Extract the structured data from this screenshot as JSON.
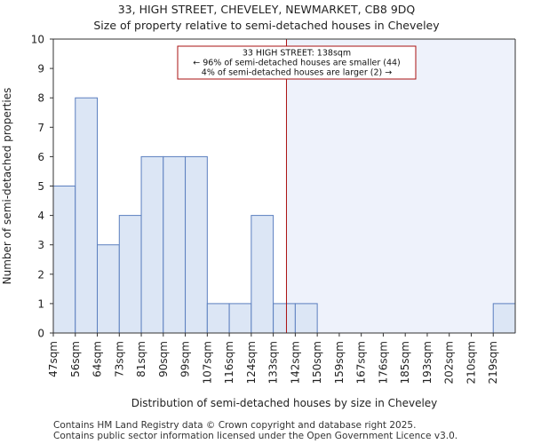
{
  "header": {
    "title_line1": "33, HIGH STREET, CHEVELEY, NEWMARKET, CB8 9DQ",
    "title_line2": "Size of property relative to semi-detached houses in Cheveley"
  },
  "footer": {
    "line1": "Contains HM Land Registry data © Crown copyright and database right 2025.",
    "line2": "Contains public sector information licensed under the Open Government Licence v3.0."
  },
  "chart_data": {
    "type": "bar",
    "title": "33, HIGH STREET, CHEVELEY, NEWMARKET, CB8 9DQ",
    "subtitle": "Size of property relative to semi-detached houses in Cheveley",
    "xlabel": "Distribution of semi-detached houses by size in Cheveley",
    "ylabel": "Number of semi-detached properties",
    "categories": [
      "47sqm",
      "56sqm",
      "64sqm",
      "73sqm",
      "81sqm",
      "90sqm",
      "99sqm",
      "107sqm",
      "116sqm",
      "124sqm",
      "133sqm",
      "142sqm",
      "150sqm",
      "159sqm",
      "167sqm",
      "176sqm",
      "185sqm",
      "193sqm",
      "202sqm",
      "210sqm",
      "219sqm"
    ],
    "values": [
      5,
      8,
      3,
      4,
      6,
      6,
      6,
      1,
      1,
      4,
      1,
      1,
      0,
      0,
      0,
      0,
      0,
      0,
      0,
      0,
      1
    ],
    "ylim": [
      0,
      10
    ],
    "yticks": [
      0,
      1,
      2,
      3,
      4,
      5,
      6,
      7,
      8,
      9,
      10
    ],
    "marker": {
      "value_sqm": 138,
      "bin_position": 10.6
    },
    "annotation": {
      "line1": "33 HIGH STREET: 138sqm",
      "line2": "← 96% of semi-detached houses are smaller (44)",
      "line3": "4% of semi-detached houses are larger (2) →"
    },
    "colors": {
      "bar_fill": "#dce6f5",
      "bar_stroke": "#5b7fbf",
      "marker_line": "#aa1111",
      "highlight_bg": "#eef2fb",
      "annotation_border": "#aa1111"
    }
  }
}
